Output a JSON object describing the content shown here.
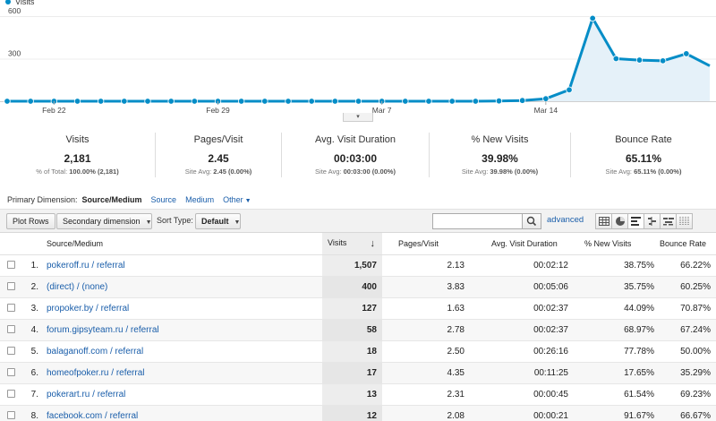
{
  "chart_data": {
    "type": "area",
    "legend": "Visits",
    "y_ticks": [
      "600",
      "300"
    ],
    "ylim": [
      0,
      600
    ],
    "x_tick_labels": [
      "Feb 22",
      "Feb 29",
      "Mar 7",
      "Mar 14"
    ],
    "x_tick_index": [
      2,
      9,
      16,
      23
    ],
    "values": [
      0,
      0,
      0,
      0,
      0,
      0,
      0,
      0,
      0,
      0,
      0,
      0,
      0,
      0,
      0,
      0,
      0,
      0,
      0,
      0,
      0,
      2,
      5,
      18,
      80,
      585,
      300,
      290,
      285,
      335,
      250
    ],
    "color": "#058dc7",
    "fill": "#e5f1f9"
  },
  "chart_toggle_label": "▾",
  "scorecards": [
    {
      "label": "Visits",
      "value": "2,181",
      "sub_prefix": "% of Total:",
      "sub_value": "100.00% (2,181)"
    },
    {
      "label": "Pages/Visit",
      "value": "2.45",
      "sub_prefix": "Site Avg:",
      "sub_value": "2.45 (0.00%)"
    },
    {
      "label": "Avg. Visit Duration",
      "value": "00:03:00",
      "sub_prefix": "Site Avg:",
      "sub_value": "00:03:00 (0.00%)"
    },
    {
      "label": "% New Visits",
      "value": "39.98%",
      "sub_prefix": "Site Avg:",
      "sub_value": "39.98% (0.00%)"
    },
    {
      "label": "Bounce Rate",
      "value": "65.11%",
      "sub_prefix": "Site Avg:",
      "sub_value": "65.11% (0.00%)"
    }
  ],
  "primary_dimension": {
    "label": "Primary Dimension:",
    "current": "Source/Medium",
    "options": [
      "Source",
      "Medium"
    ],
    "other": "Other"
  },
  "toolbar": {
    "plot_rows": "Plot Rows",
    "secondary_dimension": "Secondary dimension",
    "sort_type_label": "Sort Type:",
    "sort_type_value": "Default",
    "search_value": "",
    "advanced": "advanced"
  },
  "table": {
    "headers": {
      "source": "Source/Medium",
      "visits": "Visits",
      "sort_arrow": "↓",
      "pages": "Pages/Visit",
      "duration": "Avg. Visit Duration",
      "new_visits": "% New Visits",
      "bounce": "Bounce Rate"
    },
    "rows": [
      {
        "idx": "1.",
        "source": "pokeroff.ru / referral",
        "visits": "1,507",
        "pages": "2.13",
        "duration": "00:02:12",
        "new_visits": "38.75%",
        "bounce": "66.22%"
      },
      {
        "idx": "2.",
        "source": "(direct) / (none)",
        "visits": "400",
        "pages": "3.83",
        "duration": "00:05:06",
        "new_visits": "35.75%",
        "bounce": "60.25%"
      },
      {
        "idx": "3.",
        "source": "propoker.by / referral",
        "visits": "127",
        "pages": "1.63",
        "duration": "00:02:37",
        "new_visits": "44.09%",
        "bounce": "70.87%"
      },
      {
        "idx": "4.",
        "source": "forum.gipsyteam.ru / referral",
        "visits": "58",
        "pages": "2.78",
        "duration": "00:02:37",
        "new_visits": "68.97%",
        "bounce": "67.24%"
      },
      {
        "idx": "5.",
        "source": "balaganoff.com / referral",
        "visits": "18",
        "pages": "2.50",
        "duration": "00:26:16",
        "new_visits": "77.78%",
        "bounce": "50.00%"
      },
      {
        "idx": "6.",
        "source": "homeofpoker.ru / referral",
        "visits": "17",
        "pages": "4.35",
        "duration": "00:11:25",
        "new_visits": "17.65%",
        "bounce": "35.29%"
      },
      {
        "idx": "7.",
        "source": "pokerart.ru / referral",
        "visits": "13",
        "pages": "2.31",
        "duration": "00:00:45",
        "new_visits": "61.54%",
        "bounce": "69.23%"
      },
      {
        "idx": "8.",
        "source": "facebook.com / referral",
        "visits": "12",
        "pages": "2.08",
        "duration": "00:00:21",
        "new_visits": "91.67%",
        "bounce": "66.67%"
      }
    ]
  }
}
